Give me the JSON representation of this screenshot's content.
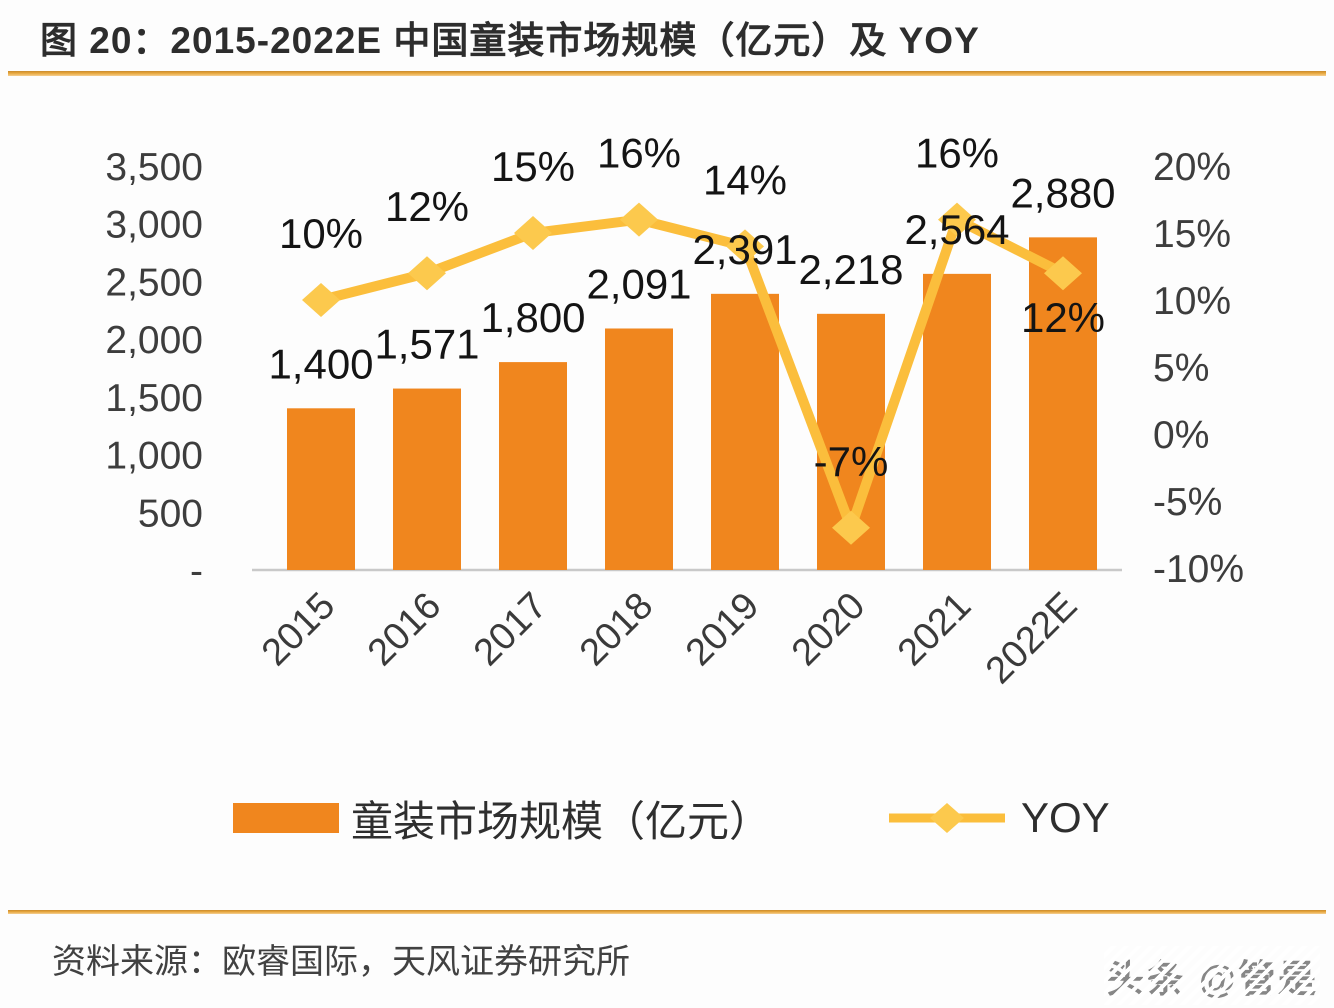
{
  "header": {
    "title": "图 20：2015-2022E 中国童装市场规模（亿元）及 YOY"
  },
  "chart_data": {
    "type": "bar",
    "subtype": "combo-bar-line-dual-axis",
    "title": "图 20：2015-2022E 中国童装市场规模（亿元）及 YOY",
    "categories": [
      "2015",
      "2016",
      "2017",
      "2018",
      "2019",
      "2020",
      "2021",
      "2022E"
    ],
    "series": [
      {
        "name": "童装市场规模（亿元）",
        "chart": "bar",
        "axis": "left",
        "values": [
          1400,
          1571,
          1800,
          2091,
          2391,
          2218,
          2564,
          2880
        ],
        "labels": [
          "1,400",
          "1,571",
          "1,800",
          "2,091",
          "2,391",
          "2,218",
          "2,564",
          "2,880"
        ]
      },
      {
        "name": "YOY",
        "chart": "line",
        "axis": "right",
        "values_pct": [
          10,
          12,
          15,
          16,
          14,
          -7,
          16,
          12
        ],
        "labels": [
          "10%",
          "12%",
          "15%",
          "16%",
          "14%",
          "-7%",
          "16%",
          "12%"
        ]
      }
    ],
    "left_axis": {
      "range": [
        0,
        3500
      ],
      "tick_labels": [
        "3,500",
        "3,000",
        "2,500",
        "2,000",
        "1,500",
        "1,000",
        "500",
        "-"
      ],
      "tick_values": [
        3500,
        3000,
        2500,
        2000,
        1500,
        1000,
        500,
        0
      ]
    },
    "right_axis": {
      "range_pct": [
        -10,
        20
      ],
      "tick_labels": [
        "20%",
        "15%",
        "10%",
        "5%",
        "0%",
        "-5%",
        "-10%"
      ],
      "tick_values_pct": [
        20,
        15,
        10,
        5,
        0,
        -5,
        -10
      ]
    },
    "grid": false,
    "legend_position": "bottom"
  },
  "legend": {
    "items": [
      {
        "label": "童装市场规模（亿元）",
        "marker": "bar-swatch"
      },
      {
        "label": "YOY",
        "marker": "line-diamond"
      }
    ]
  },
  "footer": {
    "source": "资料来源：欧睿国际，天风证券研究所",
    "watermark": "头条 @管是"
  },
  "colors": {
    "bar": "#F0861E",
    "line": "#FBBE3C",
    "marker": "#FCC94D",
    "axis_text": "#3D3D3D",
    "xlabel_text": "#3A3A3A",
    "label_text": "#141414",
    "axis_line": "#C9C9C9"
  }
}
